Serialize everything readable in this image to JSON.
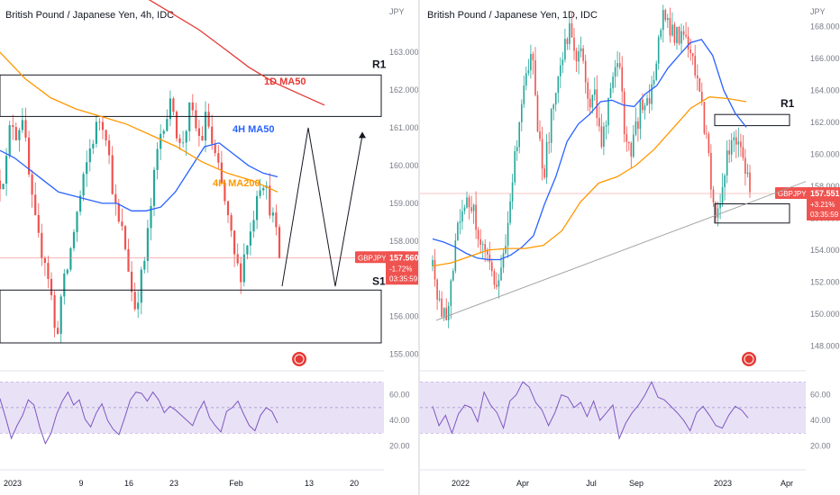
{
  "chart_data": [
    {
      "type": "candlestick",
      "title": "British Pound / Japanese Yen, 4h, IDC",
      "currency_label": "JPY",
      "ylim": [
        154.8,
        164.1
      ],
      "y_ticks": [
        "155.000",
        "156.000",
        "157.000",
        "158.000",
        "159.000",
        "160.000",
        "161.000",
        "162.000",
        "163.000"
      ],
      "x_ticks": [
        "2023",
        "9",
        "16",
        "23",
        "Feb",
        "13",
        "20"
      ],
      "price_path": [
        159.6,
        159.9,
        161.3,
        160.8,
        161.4,
        159.9,
        158.7,
        157.9,
        157.6,
        156.8,
        155.3,
        156.6,
        157.2,
        158.1,
        158.9,
        159.6,
        160.4,
        160.9,
        161.3,
        160.9,
        159.6,
        158.5,
        158.2,
        157.3,
        156.2,
        156.8,
        157.6,
        158.9,
        160.2,
        161.1,
        161.4,
        161.7,
        160.4,
        160.8,
        161.5,
        161.0,
        160.6,
        161.4,
        160.5,
        159.9,
        159.2,
        158.4,
        157.5,
        157.1,
        157.9,
        158.3,
        159.4,
        159.7,
        159.1,
        158.5,
        157.6
      ],
      "ma_4h50": [
        160.4,
        160.2,
        159.9,
        159.6,
        159.3,
        159.2,
        159.1,
        159.0,
        159.0,
        158.8,
        158.8,
        158.9,
        159.3,
        159.9,
        160.5,
        160.6,
        160.3,
        160.0,
        159.8,
        159.7
      ],
      "ma_4h200": [
        163.0,
        162.3,
        161.8,
        161.5,
        161.3,
        161.1,
        160.8,
        160.5,
        160.1,
        159.8,
        159.6,
        159.3
      ],
      "ma_1d50": [
        164.4,
        164.0,
        163.6,
        163.1,
        162.6,
        162.2,
        161.9,
        161.6
      ],
      "boxes": [
        {
          "label": "R1",
          "y_range": [
            161.3,
            162.4
          ]
        },
        {
          "label": "S1",
          "y_range": [
            155.3,
            156.7
          ]
        }
      ],
      "labels": [
        "1D MA50",
        "4H MA50",
        "4H MA200"
      ],
      "projection": [
        156.8,
        161.0,
        156.8,
        160.8
      ],
      "last_price": {
        "symbol": "GBPJPY",
        "value": "157.560",
        "change": "-1.72%",
        "timer": "03:35:59"
      },
      "rsi": {
        "ticks": [
          "60.00",
          "40.00",
          "20.00"
        ],
        "values": [
          57,
          42,
          26,
          36,
          44,
          56,
          52,
          35,
          22,
          30,
          45,
          55,
          62,
          52,
          56,
          41,
          35,
          46,
          53,
          40,
          33,
          29,
          42,
          56,
          62,
          61,
          55,
          62,
          56,
          46,
          51,
          48,
          44,
          40,
          36,
          47,
          55,
          42,
          36,
          31,
          47,
          50,
          55,
          45,
          36,
          32,
          44,
          50,
          47,
          38
        ]
      }
    },
    {
      "type": "candlestick",
      "title": "British Pound / Japanese Yen, 1D, IDC",
      "currency_label": "JPY",
      "ylim": [
        147.0,
        169.0
      ],
      "y_ticks": [
        "148.000",
        "150.000",
        "152.000",
        "154.000",
        "156.000",
        "158.000",
        "160.000",
        "162.000",
        "164.000",
        "166.000",
        "168.000"
      ],
      "x_ticks": [
        "2022",
        "Apr",
        "Jul",
        "Sep",
        "2023",
        "Apr"
      ],
      "price_path": [
        153.0,
        150.4,
        149.8,
        152.0,
        155.2,
        156.5,
        157.2,
        155.9,
        154.1,
        152.8,
        151.4,
        152.9,
        155.4,
        158.8,
        162.6,
        164.8,
        166.2,
        160.8,
        158.9,
        162.4,
        164.0,
        166.8,
        167.9,
        165.2,
        166.7,
        163.1,
        164.2,
        160.8,
        162.7,
        164.9,
        165.5,
        161.0,
        160.0,
        162.2,
        163.6,
        163.5,
        165.9,
        168.8,
        168.2,
        167.4,
        167.6,
        166.9,
        165.3,
        163.4,
        161.0,
        157.6,
        155.8,
        158.8,
        161.1,
        161.3,
        159.1,
        157.7
      ],
      "ma_blue": [
        154.7,
        154.5,
        154.2,
        153.8,
        153.5,
        153.4,
        153.4,
        153.7,
        154.2,
        154.9,
        156.9,
        158.6,
        160.8,
        161.9,
        162.5,
        163.3,
        163.4,
        163.1,
        163.0,
        163.8,
        164.3,
        165.4,
        166.2,
        167.0,
        167.2,
        166.2,
        164.0,
        162.6,
        161.7
      ],
      "ma_orange": [
        153.0,
        153.2,
        153.6,
        154.0,
        154.1,
        154.1,
        154.3,
        155.2,
        157.0,
        158.2,
        158.6,
        159.3,
        160.3,
        161.6,
        162.9,
        163.6,
        163.5,
        163.3
      ],
      "trendline": [
        149.6,
        158.3
      ],
      "boxes": [
        {
          "label": "R1",
          "y_range": [
            161.8,
            162.5
          ]
        },
        {
          "label": "",
          "y_range": [
            155.7,
            156.9
          ]
        }
      ],
      "last_price": {
        "symbol": "GBPJPY",
        "value": "157.551",
        "change": "+3.21%",
        "timer": "03:35:59"
      },
      "rsi": {
        "ticks": [
          "60.00",
          "40.00",
          "20.00"
        ],
        "values": [
          51,
          36,
          44,
          30,
          45,
          52,
          50,
          39,
          62,
          52,
          46,
          34,
          55,
          60,
          70,
          66,
          54,
          48,
          36,
          46,
          60,
          58,
          50,
          54,
          43,
          55,
          40,
          46,
          52,
          26,
          38,
          46,
          52,
          60,
          70,
          58,
          56,
          51,
          46,
          40,
          32,
          46,
          51,
          44,
          36,
          34,
          44,
          51,
          48,
          42
        ]
      }
    }
  ],
  "colors": {
    "up": "#26a69a",
    "down": "#ef5350",
    "ma_blue": "#2962ff",
    "ma_orange": "#ff9800",
    "ma_red": "#e53935",
    "label_red": "#e53935",
    "rsi": "#7e57c2",
    "rsi_band": "#e9e2f6"
  }
}
